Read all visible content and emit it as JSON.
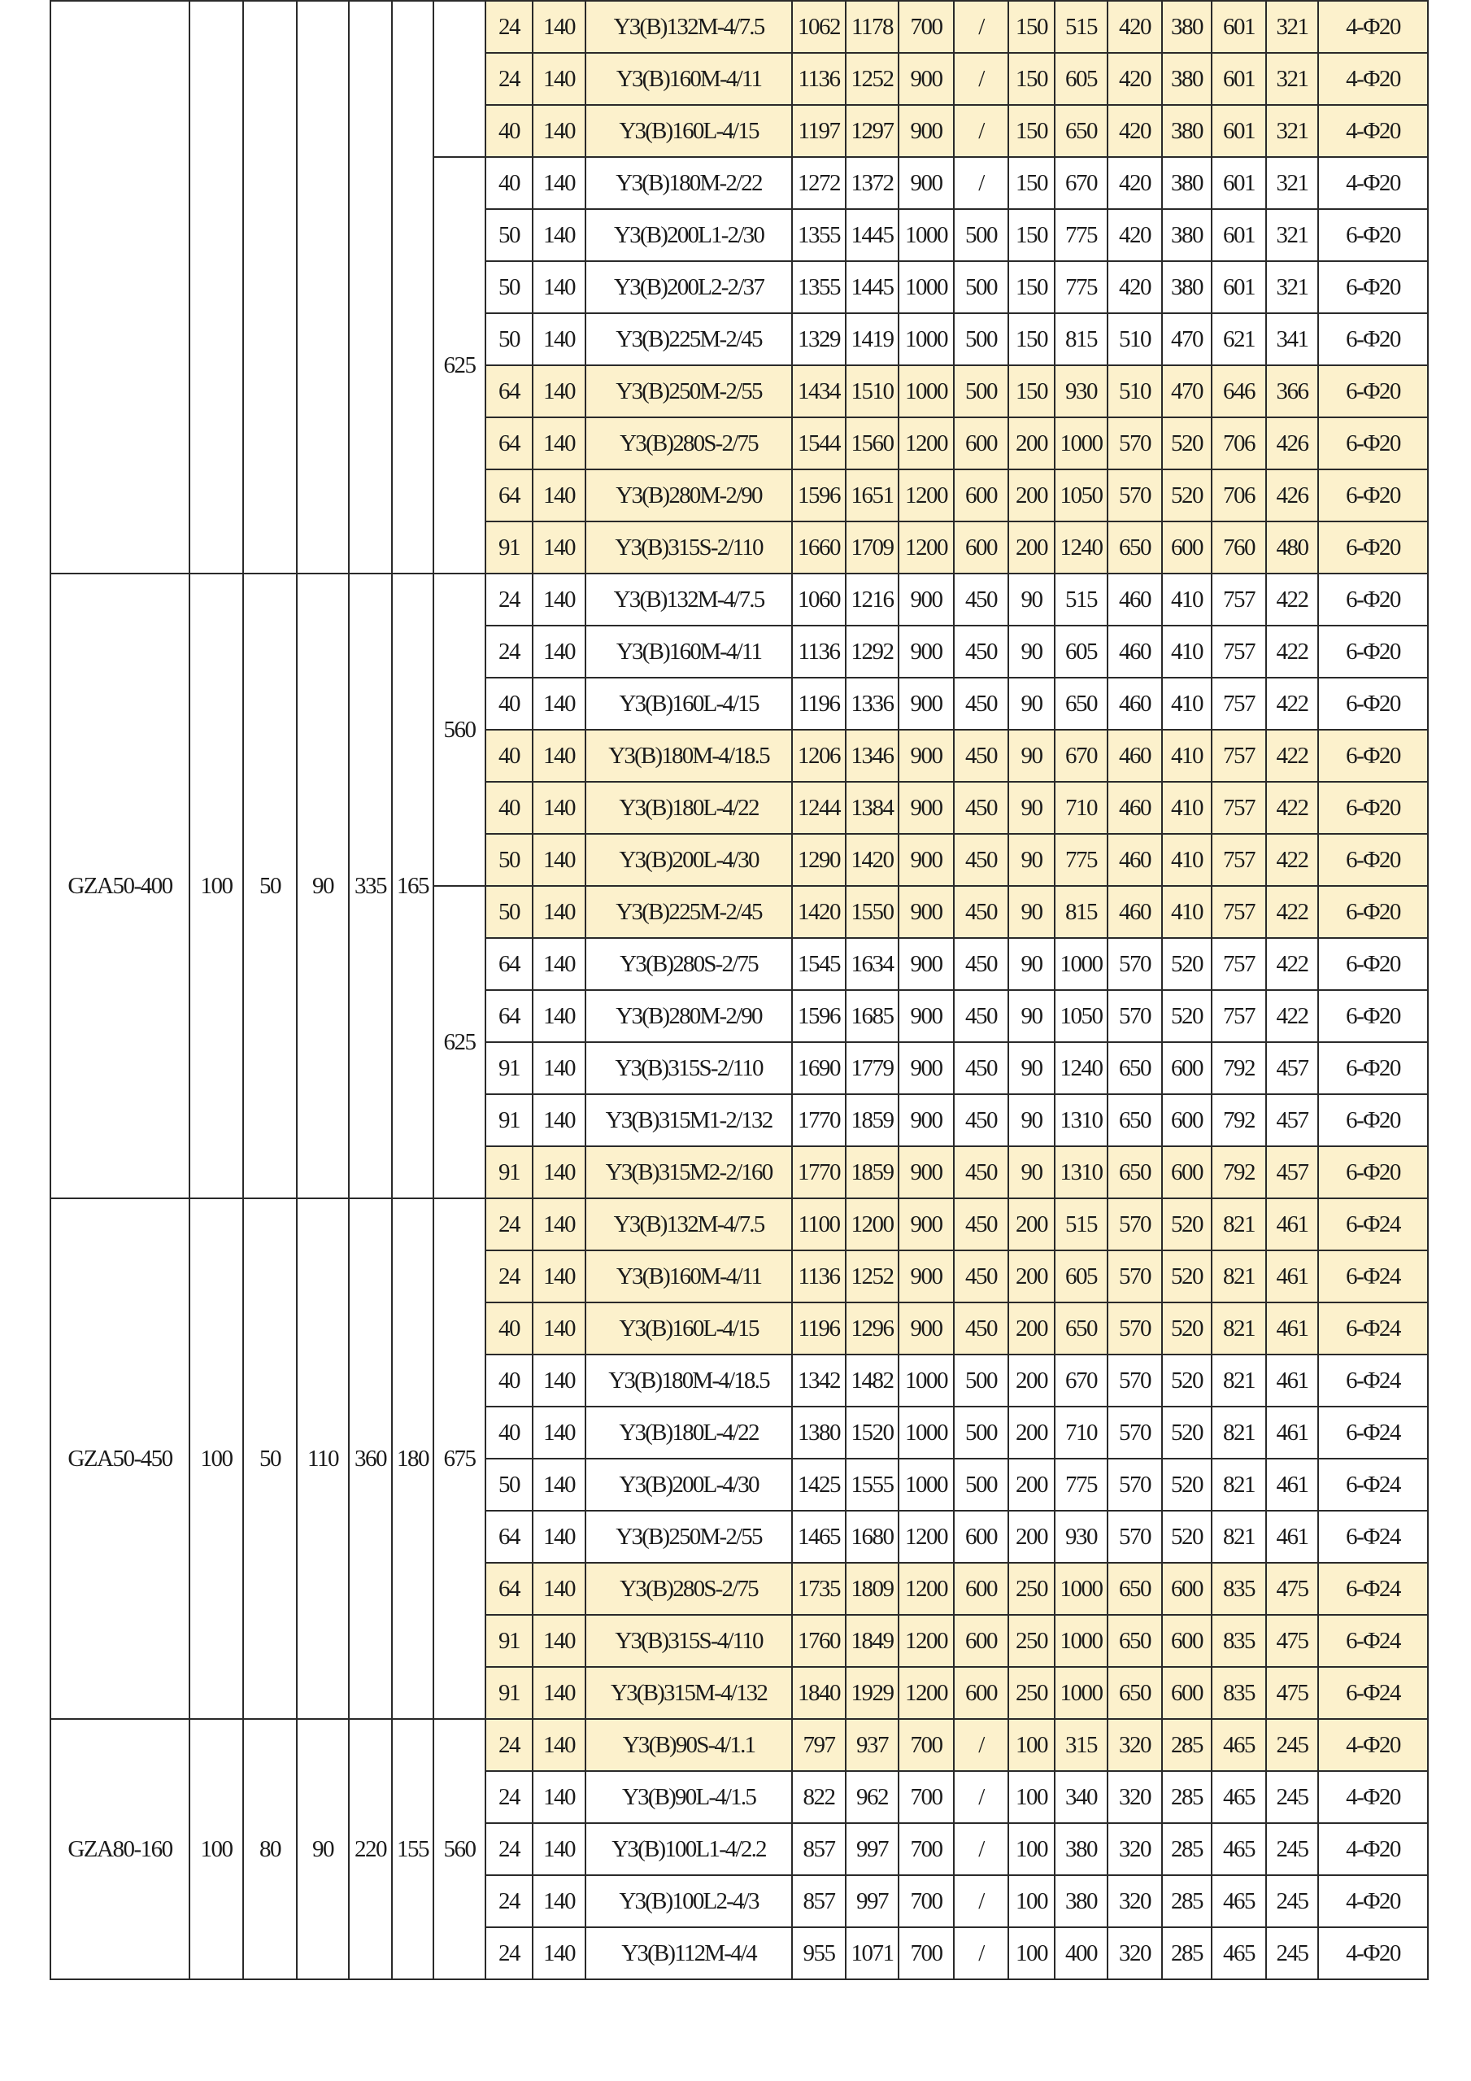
{
  "table": {
    "groups": [
      {
        "model": "",
        "c1": "",
        "c2": "",
        "c3": "",
        "c4": "",
        "c5": "",
        "subgroups": [
          {
            "size": "",
            "rows": [
              {
                "h": true,
                "v": [
                  "24",
                  "140",
                  "Y3(B)132M-4/7.5",
                  "1062",
                  "1178",
                  "700",
                  "/",
                  "150",
                  "515",
                  "420",
                  "380",
                  "601",
                  "321",
                  "4-Φ20"
                ]
              },
              {
                "h": true,
                "v": [
                  "24",
                  "140",
                  "Y3(B)160M-4/11",
                  "1136",
                  "1252",
                  "900",
                  "/",
                  "150",
                  "605",
                  "420",
                  "380",
                  "601",
                  "321",
                  "4-Φ20"
                ]
              },
              {
                "h": true,
                "v": [
                  "40",
                  "140",
                  "Y3(B)160L-4/15",
                  "1197",
                  "1297",
                  "900",
                  "/",
                  "150",
                  "650",
                  "420",
                  "380",
                  "601",
                  "321",
                  "4-Φ20"
                ]
              }
            ]
          },
          {
            "size": "625",
            "rows": [
              {
                "h": false,
                "v": [
                  "40",
                  "140",
                  "Y3(B)180M-2/22",
                  "1272",
                  "1372",
                  "900",
                  "/",
                  "150",
                  "670",
                  "420",
                  "380",
                  "601",
                  "321",
                  "4-Φ20"
                ]
              },
              {
                "h": false,
                "v": [
                  "50",
                  "140",
                  "Y3(B)200L1-2/30",
                  "1355",
                  "1445",
                  "1000",
                  "500",
                  "150",
                  "775",
                  "420",
                  "380",
                  "601",
                  "321",
                  "6-Φ20"
                ]
              },
              {
                "h": false,
                "v": [
                  "50",
                  "140",
                  "Y3(B)200L2-2/37",
                  "1355",
                  "1445",
                  "1000",
                  "500",
                  "150",
                  "775",
                  "420",
                  "380",
                  "601",
                  "321",
                  "6-Φ20"
                ]
              },
              {
                "h": false,
                "v": [
                  "50",
                  "140",
                  "Y3(B)225M-2/45",
                  "1329",
                  "1419",
                  "1000",
                  "500",
                  "150",
                  "815",
                  "510",
                  "470",
                  "621",
                  "341",
                  "6-Φ20"
                ]
              },
              {
                "h": true,
                "v": [
                  "64",
                  "140",
                  "Y3(B)250M-2/55",
                  "1434",
                  "1510",
                  "1000",
                  "500",
                  "150",
                  "930",
                  "510",
                  "470",
                  "646",
                  "366",
                  "6-Φ20"
                ]
              },
              {
                "h": true,
                "v": [
                  "64",
                  "140",
                  "Y3(B)280S-2/75",
                  "1544",
                  "1560",
                  "1200",
                  "600",
                  "200",
                  "1000",
                  "570",
                  "520",
                  "706",
                  "426",
                  "6-Φ20"
                ]
              },
              {
                "h": true,
                "v": [
                  "64",
                  "140",
                  "Y3(B)280M-2/90",
                  "1596",
                  "1651",
                  "1200",
                  "600",
                  "200",
                  "1050",
                  "570",
                  "520",
                  "706",
                  "426",
                  "6-Φ20"
                ]
              },
              {
                "h": true,
                "v": [
                  "91",
                  "140",
                  "Y3(B)315S-2/110",
                  "1660",
                  "1709",
                  "1200",
                  "600",
                  "200",
                  "1240",
                  "650",
                  "600",
                  "760",
                  "480",
                  "6-Φ20"
                ]
              }
            ]
          }
        ]
      },
      {
        "model": "GZA50-400",
        "c1": "100",
        "c2": "50",
        "c3": "90",
        "c4": "335",
        "c5": "165",
        "subgroups": [
          {
            "size": "560",
            "rows": [
              {
                "h": false,
                "v": [
                  "24",
                  "140",
                  "Y3(B)132M-4/7.5",
                  "1060",
                  "1216",
                  "900",
                  "450",
                  "90",
                  "515",
                  "460",
                  "410",
                  "757",
                  "422",
                  "6-Φ20"
                ]
              },
              {
                "h": false,
                "v": [
                  "24",
                  "140",
                  "Y3(B)160M-4/11",
                  "1136",
                  "1292",
                  "900",
                  "450",
                  "90",
                  "605",
                  "460",
                  "410",
                  "757",
                  "422",
                  "6-Φ20"
                ]
              },
              {
                "h": false,
                "v": [
                  "40",
                  "140",
                  "Y3(B)160L-4/15",
                  "1196",
                  "1336",
                  "900",
                  "450",
                  "90",
                  "650",
                  "460",
                  "410",
                  "757",
                  "422",
                  "6-Φ20"
                ]
              },
              {
                "h": true,
                "v": [
                  "40",
                  "140",
                  "Y3(B)180M-4/18.5",
                  "1206",
                  "1346",
                  "900",
                  "450",
                  "90",
                  "670",
                  "460",
                  "410",
                  "757",
                  "422",
                  "6-Φ20"
                ]
              },
              {
                "h": true,
                "v": [
                  "40",
                  "140",
                  "Y3(B)180L-4/22",
                  "1244",
                  "1384",
                  "900",
                  "450",
                  "90",
                  "710",
                  "460",
                  "410",
                  "757",
                  "422",
                  "6-Φ20"
                ]
              },
              {
                "h": true,
                "v": [
                  "50",
                  "140",
                  "Y3(B)200L-4/30",
                  "1290",
                  "1420",
                  "900",
                  "450",
                  "90",
                  "775",
                  "460",
                  "410",
                  "757",
                  "422",
                  "6-Φ20"
                ]
              }
            ]
          },
          {
            "size": "625",
            "rows": [
              {
                "h": true,
                "v": [
                  "50",
                  "140",
                  "Y3(B)225M-2/45",
                  "1420",
                  "1550",
                  "900",
                  "450",
                  "90",
                  "815",
                  "460",
                  "410",
                  "757",
                  "422",
                  "6-Φ20"
                ]
              },
              {
                "h": false,
                "v": [
                  "64",
                  "140",
                  "Y3(B)280S-2/75",
                  "1545",
                  "1634",
                  "900",
                  "450",
                  "90",
                  "1000",
                  "570",
                  "520",
                  "757",
                  "422",
                  "6-Φ20"
                ]
              },
              {
                "h": false,
                "v": [
                  "64",
                  "140",
                  "Y3(B)280M-2/90",
                  "1596",
                  "1685",
                  "900",
                  "450",
                  "90",
                  "1050",
                  "570",
                  "520",
                  "757",
                  "422",
                  "6-Φ20"
                ]
              },
              {
                "h": false,
                "v": [
                  "91",
                  "140",
                  "Y3(B)315S-2/110",
                  "1690",
                  "1779",
                  "900",
                  "450",
                  "90",
                  "1240",
                  "650",
                  "600",
                  "792",
                  "457",
                  "6-Φ20"
                ]
              },
              {
                "h": false,
                "v": [
                  "91",
                  "140",
                  "Y3(B)315M1-2/132",
                  "1770",
                  "1859",
                  "900",
                  "450",
                  "90",
                  "1310",
                  "650",
                  "600",
                  "792",
                  "457",
                  "6-Φ20"
                ]
              },
              {
                "h": true,
                "v": [
                  "91",
                  "140",
                  "Y3(B)315M2-2/160",
                  "1770",
                  "1859",
                  "900",
                  "450",
                  "90",
                  "1310",
                  "650",
                  "600",
                  "792",
                  "457",
                  "6-Φ20"
                ]
              }
            ]
          }
        ]
      },
      {
        "model": "GZA50-450",
        "c1": "100",
        "c2": "50",
        "c3": "110",
        "c4": "360",
        "c5": "180",
        "subgroups": [
          {
            "size": "675",
            "rows": [
              {
                "h": true,
                "v": [
                  "24",
                  "140",
                  "Y3(B)132M-4/7.5",
                  "1100",
                  "1200",
                  "900",
                  "450",
                  "200",
                  "515",
                  "570",
                  "520",
                  "821",
                  "461",
                  "6-Φ24"
                ]
              },
              {
                "h": true,
                "v": [
                  "24",
                  "140",
                  "Y3(B)160M-4/11",
                  "1136",
                  "1252",
                  "900",
                  "450",
                  "200",
                  "605",
                  "570",
                  "520",
                  "821",
                  "461",
                  "6-Φ24"
                ]
              },
              {
                "h": true,
                "v": [
                  "40",
                  "140",
                  "Y3(B)160L-4/15",
                  "1196",
                  "1296",
                  "900",
                  "450",
                  "200",
                  "650",
                  "570",
                  "520",
                  "821",
                  "461",
                  "6-Φ24"
                ]
              },
              {
                "h": false,
                "v": [
                  "40",
                  "140",
                  "Y3(B)180M-4/18.5",
                  "1342",
                  "1482",
                  "1000",
                  "500",
                  "200",
                  "670",
                  "570",
                  "520",
                  "821",
                  "461",
                  "6-Φ24"
                ]
              },
              {
                "h": false,
                "v": [
                  "40",
                  "140",
                  "Y3(B)180L-4/22",
                  "1380",
                  "1520",
                  "1000",
                  "500",
                  "200",
                  "710",
                  "570",
                  "520",
                  "821",
                  "461",
                  "6-Φ24"
                ]
              },
              {
                "h": false,
                "v": [
                  "50",
                  "140",
                  "Y3(B)200L-4/30",
                  "1425",
                  "1555",
                  "1000",
                  "500",
                  "200",
                  "775",
                  "570",
                  "520",
                  "821",
                  "461",
                  "6-Φ24"
                ]
              },
              {
                "h": false,
                "v": [
                  "64",
                  "140",
                  "Y3(B)250M-2/55",
                  "1465",
                  "1680",
                  "1200",
                  "600",
                  "200",
                  "930",
                  "570",
                  "520",
                  "821",
                  "461",
                  "6-Φ24"
                ]
              },
              {
                "h": true,
                "v": [
                  "64",
                  "140",
                  "Y3(B)280S-2/75",
                  "1735",
                  "1809",
                  "1200",
                  "600",
                  "250",
                  "1000",
                  "650",
                  "600",
                  "835",
                  "475",
                  "6-Φ24"
                ]
              },
              {
                "h": true,
                "v": [
                  "91",
                  "140",
                  "Y3(B)315S-4/110",
                  "1760",
                  "1849",
                  "1200",
                  "600",
                  "250",
                  "1000",
                  "650",
                  "600",
                  "835",
                  "475",
                  "6-Φ24"
                ]
              },
              {
                "h": true,
                "v": [
                  "91",
                  "140",
                  "Y3(B)315M-4/132",
                  "1840",
                  "1929",
                  "1200",
                  "600",
                  "250",
                  "1000",
                  "650",
                  "600",
                  "835",
                  "475",
                  "6-Φ24"
                ]
              }
            ]
          }
        ]
      },
      {
        "model": "GZA80-160",
        "c1": "100",
        "c2": "80",
        "c3": "90",
        "c4": "220",
        "c5": "155",
        "subgroups": [
          {
            "size": "560",
            "rows": [
              {
                "h": true,
                "v": [
                  "24",
                  "140",
                  "Y3(B)90S-4/1.1",
                  "797",
                  "937",
                  "700",
                  "/",
                  "100",
                  "315",
                  "320",
                  "285",
                  "465",
                  "245",
                  "4-Φ20"
                ]
              },
              {
                "h": false,
                "v": [
                  "24",
                  "140",
                  "Y3(B)90L-4/1.5",
                  "822",
                  "962",
                  "700",
                  "/",
                  "100",
                  "340",
                  "320",
                  "285",
                  "465",
                  "245",
                  "4-Φ20"
                ]
              },
              {
                "h": false,
                "v": [
                  "24",
                  "140",
                  "Y3(B)100L1-4/2.2",
                  "857",
                  "997",
                  "700",
                  "/",
                  "100",
                  "380",
                  "320",
                  "285",
                  "465",
                  "245",
                  "4-Φ20"
                ]
              },
              {
                "h": false,
                "v": [
                  "24",
                  "140",
                  "Y3(B)100L2-4/3",
                  "857",
                  "997",
                  "700",
                  "/",
                  "100",
                  "380",
                  "320",
                  "285",
                  "465",
                  "245",
                  "4-Φ20"
                ]
              },
              {
                "h": false,
                "v": [
                  "24",
                  "140",
                  "Y3(B)112M-4/4",
                  "955",
                  "1071",
                  "700",
                  "/",
                  "100",
                  "400",
                  "320",
                  "285",
                  "465",
                  "245",
                  "4-Φ20"
                ]
              }
            ]
          }
        ]
      }
    ],
    "highlight_color": "#fcf1cc"
  }
}
